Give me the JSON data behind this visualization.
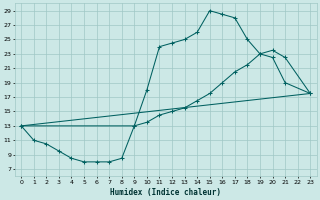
{
  "xlabel": "Humidex (Indice chaleur)",
  "bg_color": "#cce8e6",
  "grid_color": "#a0c8c5",
  "line_color": "#006060",
  "xlim": [
    -0.5,
    23.5
  ],
  "ylim": [
    6,
    30
  ],
  "yticks": [
    7,
    9,
    11,
    13,
    15,
    17,
    19,
    21,
    23,
    25,
    27,
    29
  ],
  "xticks": [
    0,
    1,
    2,
    3,
    4,
    5,
    6,
    7,
    8,
    9,
    10,
    11,
    12,
    13,
    14,
    15,
    16,
    17,
    18,
    19,
    20,
    21,
    22,
    23
  ],
  "curve1_x": [
    0,
    1,
    2,
    3,
    4,
    5,
    6,
    7,
    8,
    9,
    10,
    11,
    12,
    13,
    14,
    15,
    16,
    17,
    18,
    19,
    20,
    21,
    23
  ],
  "curve1_y": [
    13,
    11,
    10.5,
    9.5,
    8.5,
    8.0,
    8.0,
    8.0,
    8.5,
    13,
    18,
    24,
    24.5,
    25,
    26,
    29,
    28.5,
    28,
    25,
    23,
    22.5,
    19,
    17.5
  ],
  "curve2_x": [
    0,
    23
  ],
  "curve2_y": [
    13,
    17.5
  ],
  "curve3_x": [
    0,
    9,
    10,
    11,
    12,
    13,
    14,
    15,
    16,
    17,
    18,
    19,
    20,
    21,
    23
  ],
  "curve3_y": [
    13,
    13,
    13.5,
    14.5,
    15,
    15.5,
    16.5,
    17.5,
    19,
    20.5,
    21.5,
    23,
    23.5,
    22.5,
    17.5
  ]
}
